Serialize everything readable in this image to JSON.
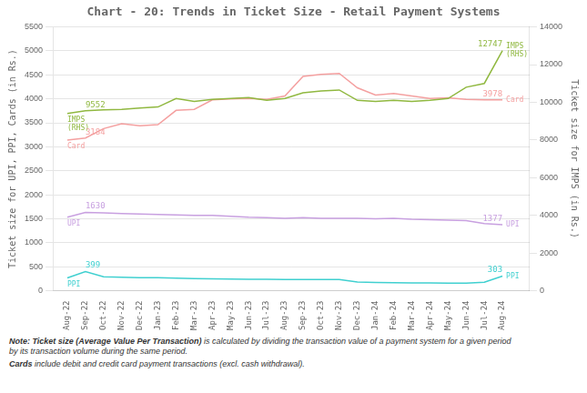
{
  "chart_data": {
    "type": "line",
    "title": "Chart - 20: Trends in Ticket Size - Retail Payment Systems",
    "ylabel": "Ticket size for UPI, PPI, Cards (in Rs.)",
    "y2label": "Ticket size for IMPS (in Rs.)",
    "categories": [
      "Aug-22",
      "Sep-22",
      "Oct-22",
      "Nov-22",
      "Dec-22",
      "Jan-23",
      "Feb-23",
      "Mar-23",
      "Apr-23",
      "May-23",
      "Jun-23",
      "Jul-23",
      "Aug-23",
      "Sep-23",
      "Oct-23",
      "Nov-23",
      "Dec-23",
      "Jan-24",
      "Feb-24",
      "Mar-24",
      "Apr-24",
      "May-24",
      "Jun-24",
      "Jul-24",
      "Aug-24"
    ],
    "series": [
      {
        "name": "IMPS",
        "color": "#90b840",
        "axis": "y2",
        "values": [
          9400,
          9552,
          9600,
          9620,
          9700,
          9750,
          10200,
          10050,
          10150,
          10200,
          10250,
          10100,
          10200,
          10500,
          10600,
          10650,
          10100,
          10050,
          10100,
          10050,
          10100,
          10200,
          10800,
          11000,
          12747
        ]
      },
      {
        "name": "Card",
        "color": "#f4a0a0",
        "axis": "y",
        "values": [
          3140,
          3184,
          3380,
          3480,
          3440,
          3460,
          3760,
          3780,
          3980,
          4000,
          4010,
          3990,
          4060,
          4470,
          4510,
          4530,
          4230,
          4080,
          4110,
          4060,
          4010,
          4020,
          3990,
          3980,
          3978
        ]
      },
      {
        "name": "UPI",
        "color": "#c8a0e0",
        "axis": "y",
        "values": [
          1530,
          1630,
          1620,
          1610,
          1600,
          1590,
          1580,
          1570,
          1570,
          1550,
          1530,
          1520,
          1510,
          1520,
          1510,
          1510,
          1510,
          1500,
          1510,
          1490,
          1480,
          1470,
          1460,
          1400,
          1377
        ]
      },
      {
        "name": "PPI",
        "color": "#40d0d0",
        "axis": "y",
        "values": [
          265,
          399,
          290,
          280,
          270,
          268,
          260,
          252,
          248,
          243,
          238,
          236,
          234,
          233,
          232,
          231,
          178,
          172,
          168,
          162,
          160,
          157,
          154,
          175,
          303
        ]
      }
    ],
    "ylim": [
      0,
      5500
    ],
    "yticks": [
      0,
      500,
      1000,
      1500,
      2000,
      2500,
      3000,
      3500,
      4000,
      4500,
      5000,
      5500
    ],
    "y2lim": [
      0,
      14000
    ],
    "y2ticks": [
      0,
      2000,
      4000,
      6000,
      8000,
      10000,
      12000,
      14000
    ],
    "grid": true,
    "annotations": [
      {
        "text": "9552",
        "series": "IMPS",
        "category": "Sep-22",
        "value": 9552
      },
      {
        "text": "IMPS\n(RHS)",
        "series": "IMPS",
        "category": "Aug-22"
      },
      {
        "text": "12747",
        "series": "IMPS",
        "category": "Aug-24",
        "value": 12747
      },
      {
        "text": "IMPS\n(RHS)",
        "series": "IMPS",
        "category": "Aug-24"
      },
      {
        "text": "3184",
        "series": "Card",
        "category": "Sep-22",
        "value": 3184
      },
      {
        "text": "Card",
        "series": "Card",
        "category": "Aug-22"
      },
      {
        "text": "3978",
        "series": "Card",
        "category": "Aug-24",
        "value": 3978
      },
      {
        "text": "Card",
        "series": "Card",
        "category": "Aug-24"
      },
      {
        "text": "1630",
        "series": "UPI",
        "category": "Sep-22",
        "value": 1630
      },
      {
        "text": "UPI",
        "series": "UPI",
        "category": "Aug-22"
      },
      {
        "text": "1377",
        "series": "UPI",
        "category": "Aug-24",
        "value": 1377
      },
      {
        "text": "UPI",
        "series": "UPI",
        "category": "Aug-24"
      },
      {
        "text": "399",
        "series": "PPI",
        "category": "Sep-22",
        "value": 399
      },
      {
        "text": "PPI",
        "series": "PPI",
        "category": "Aug-22"
      },
      {
        "text": "303",
        "series": "PPI",
        "category": "Aug-24",
        "value": 303
      },
      {
        "text": "PPI",
        "series": "PPI",
        "category": "Aug-24"
      }
    ],
    "notes": [
      {
        "bold": "Note: Ticket size (Average Value Per Transaction)",
        "text": " is calculated by dividing the transaction value of a payment system for a given period\nby its transaction volume during the same period."
      },
      {
        "bold": "Cards",
        "text": " include debit and credit card payment transactions (excl. cash withdrawal)."
      }
    ]
  }
}
